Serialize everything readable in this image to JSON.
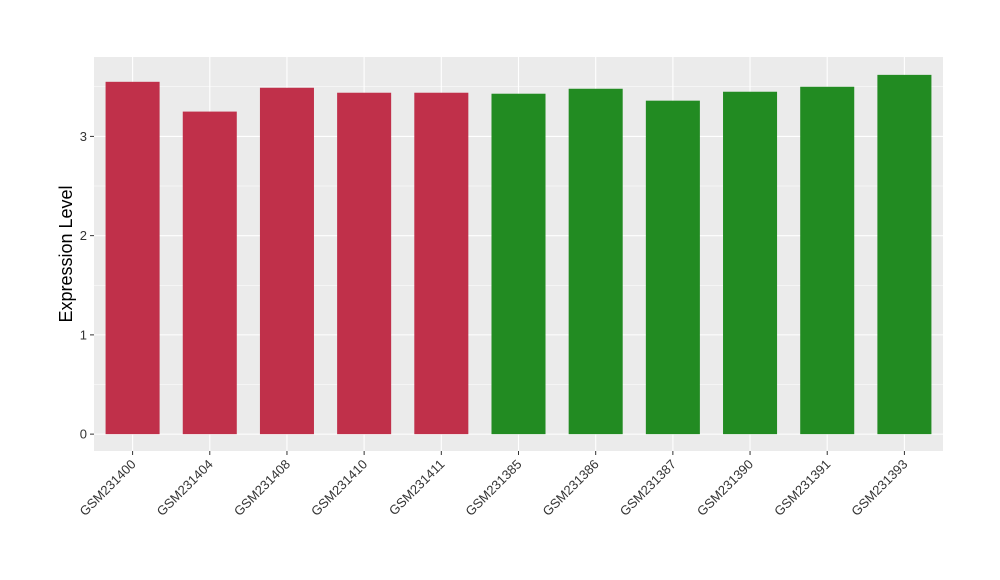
{
  "chart_data": {
    "type": "bar",
    "title": "",
    "xlabel": "",
    "ylabel": "Expression Level",
    "categories": [
      "GSM231400",
      "GSM231404",
      "GSM231408",
      "GSM231410",
      "GSM231411",
      "GSM231385",
      "GSM231386",
      "GSM231387",
      "GSM231390",
      "GSM231391",
      "GSM231393"
    ],
    "values": [
      3.55,
      3.25,
      3.49,
      3.44,
      3.44,
      3.43,
      3.48,
      3.36,
      3.45,
      3.5,
      3.62
    ],
    "bar_colors": [
      "#c0304a",
      "#c0304a",
      "#c0304a",
      "#c0304a",
      "#c0304a",
      "#228b22",
      "#228b22",
      "#228b22",
      "#228b22",
      "#228b22",
      "#228b22"
    ],
    "yticks": [
      0,
      1,
      2,
      3
    ],
    "ylim": [
      -0.17,
      3.8
    ],
    "grid": true,
    "legend": "none",
    "panel_color": "#ebebeb",
    "grid_color": "#ffffff"
  }
}
